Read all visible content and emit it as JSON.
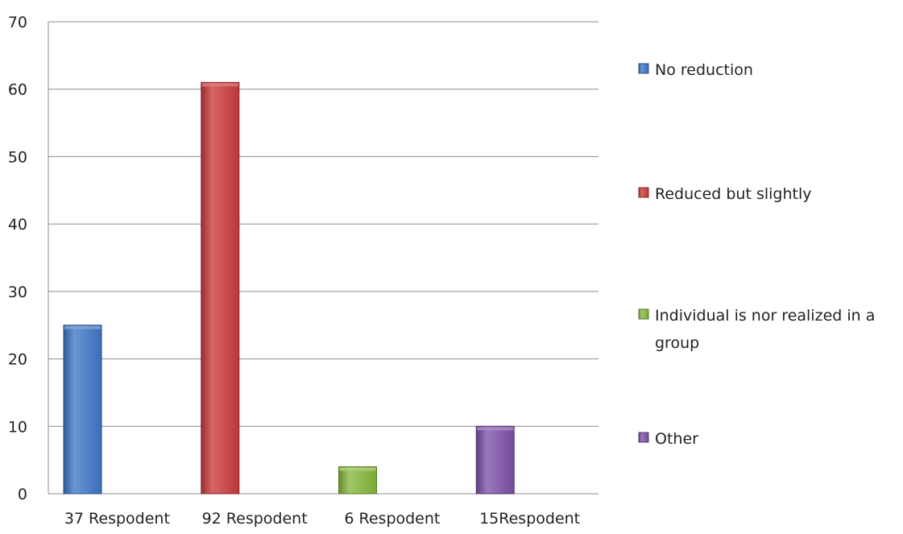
{
  "chart_data": {
    "type": "bar",
    "categories": [
      "37 Respodent",
      "92 Respodent",
      "6 Respodent",
      "15Respodent"
    ],
    "series": [
      {
        "name": "No reduction",
        "values": [
          25,
          null,
          null,
          null
        ],
        "color": "#3f78c8"
      },
      {
        "name": "Reduced but slightly",
        "values": [
          null,
          61,
          null,
          null
        ],
        "color": "#cc3b3b"
      },
      {
        "name": "Individual is nor realized in a group",
        "name_lines": [
          "Individual is nor realized in a",
          "group"
        ],
        "values": [
          null,
          null,
          4,
          null
        ],
        "color": "#86b83c"
      },
      {
        "name": "Other",
        "values": [
          null,
          null,
          null,
          10
        ],
        "color": "#7d52a8"
      }
    ],
    "ylim": [
      0,
      70
    ],
    "yticks": [
      0,
      10,
      20,
      30,
      40,
      50,
      60,
      70
    ],
    "grid": true,
    "legend_position": "right",
    "title": "",
    "xlabel": "",
    "ylabel": ""
  }
}
